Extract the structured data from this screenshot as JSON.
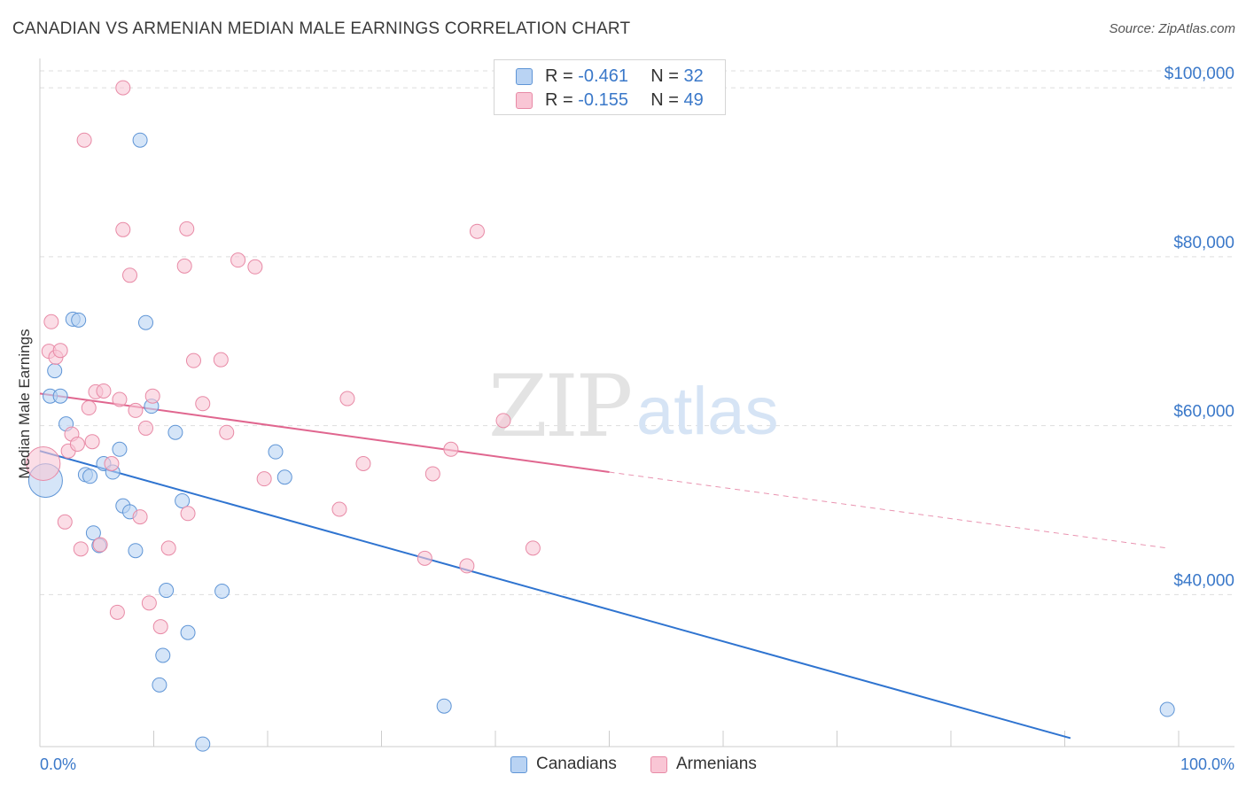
{
  "header": {
    "title": "CANADIAN VS ARMENIAN MEDIAN MALE EARNINGS CORRELATION CHART",
    "source": "Source: ZipAtlas.com"
  },
  "legend": {
    "rows": [
      {
        "r_label": "R =",
        "r_value": "-0.461",
        "n_label": "N =",
        "n_value": "32"
      },
      {
        "r_label": "R =",
        "r_value": "-0.155",
        "n_label": "N =",
        "n_value": "49"
      }
    ]
  },
  "bottom_legend": {
    "canadians": "Canadians",
    "armenians": "Armenians"
  },
  "watermark": {
    "zip": "ZIP",
    "atlas": "atlas"
  },
  "colors": {
    "canadians_fill": "#b9d3f3",
    "canadians_stroke": "#5f95d6",
    "canadians_line": "#2f74d0",
    "armenians_fill": "#f9c6d5",
    "armenians_stroke": "#e88aa6",
    "armenians_line": "#e0668f",
    "tick_text": "#3a78c9",
    "grid": "#dddddd"
  },
  "chart_data": {
    "type": "scatter",
    "title": "CANADIAN VS ARMENIAN MEDIAN MALE EARNINGS CORRELATION CHART",
    "xlabel": "",
    "ylabel": "Median Male Earnings",
    "xlim": [
      0,
      100
    ],
    "ylim": [
      22000,
      102000
    ],
    "x_tick_labels": [
      "0.0%",
      "100.0%"
    ],
    "y_ticks": [
      40000,
      60000,
      80000,
      100000
    ],
    "y_tick_labels": [
      "$40,000",
      "$60,000",
      "$80,000",
      "$100,000"
    ],
    "grid": true,
    "series": [
      {
        "name": "Canadians",
        "r": -0.461,
        "n": 32,
        "trend": {
          "x": [
            0,
            90.5
          ],
          "y": [
            57000,
            23000
          ],
          "dashed_to": null
        },
        "points": [
          {
            "x": 0.5,
            "y": 53500,
            "big": true
          },
          {
            "x": 0.9,
            "y": 63500
          },
          {
            "x": 1.3,
            "y": 66500
          },
          {
            "x": 1.8,
            "y": 63500
          },
          {
            "x": 2.3,
            "y": 60200
          },
          {
            "x": 2.9,
            "y": 72600
          },
          {
            "x": 3.4,
            "y": 72500
          },
          {
            "x": 4.0,
            "y": 54200
          },
          {
            "x": 4.4,
            "y": 54000
          },
          {
            "x": 4.7,
            "y": 47300
          },
          {
            "x": 5.2,
            "y": 45800
          },
          {
            "x": 5.6,
            "y": 55500
          },
          {
            "x": 6.4,
            "y": 54500
          },
          {
            "x": 7.0,
            "y": 57200
          },
          {
            "x": 7.3,
            "y": 50500
          },
          {
            "x": 7.9,
            "y": 49800
          },
          {
            "x": 8.4,
            "y": 45200
          },
          {
            "x": 8.8,
            "y": 93800
          },
          {
            "x": 9.3,
            "y": 72200
          },
          {
            "x": 9.8,
            "y": 62300
          },
          {
            "x": 10.5,
            "y": 29300
          },
          {
            "x": 10.8,
            "y": 32800
          },
          {
            "x": 11.1,
            "y": 40500
          },
          {
            "x": 11.9,
            "y": 59200
          },
          {
            "x": 12.5,
            "y": 51100
          },
          {
            "x": 13.0,
            "y": 35500
          },
          {
            "x": 14.3,
            "y": 22300
          },
          {
            "x": 16.0,
            "y": 40400
          },
          {
            "x": 20.7,
            "y": 56900
          },
          {
            "x": 21.5,
            "y": 53900
          },
          {
            "x": 35.5,
            "y": 26800
          },
          {
            "x": 99.0,
            "y": 26400
          }
        ]
      },
      {
        "name": "Armenians",
        "r": -0.155,
        "n": 49,
        "trend": {
          "x": [
            0,
            50
          ],
          "y": [
            63800,
            54500
          ],
          "dashed_to": {
            "x": 99,
            "y": 45500
          }
        },
        "points": [
          {
            "x": 0.3,
            "y": 55500,
            "big": true
          },
          {
            "x": 0.8,
            "y": 68800
          },
          {
            "x": 1.0,
            "y": 72300
          },
          {
            "x": 1.4,
            "y": 68100
          },
          {
            "x": 1.8,
            "y": 68900
          },
          {
            "x": 2.2,
            "y": 48600
          },
          {
            "x": 2.5,
            "y": 57000
          },
          {
            "x": 2.8,
            "y": 59000
          },
          {
            "x": 3.3,
            "y": 57800
          },
          {
            "x": 3.6,
            "y": 45400
          },
          {
            "x": 4.3,
            "y": 62100
          },
          {
            "x": 4.6,
            "y": 58100
          },
          {
            "x": 4.9,
            "y": 64000
          },
          {
            "x": 5.3,
            "y": 45900
          },
          {
            "x": 5.6,
            "y": 64100
          },
          {
            "x": 6.3,
            "y": 55500
          },
          {
            "x": 6.8,
            "y": 37900
          },
          {
            "x": 7.0,
            "y": 63100
          },
          {
            "x": 7.3,
            "y": 83200
          },
          {
            "x": 7.9,
            "y": 77800
          },
          {
            "x": 8.4,
            "y": 61800
          },
          {
            "x": 8.8,
            "y": 49200
          },
          {
            "x": 9.3,
            "y": 59700
          },
          {
            "x": 9.6,
            "y": 39000
          },
          {
            "x": 9.9,
            "y": 63500
          },
          {
            "x": 10.6,
            "y": 36200
          },
          {
            "x": 11.3,
            "y": 45500
          },
          {
            "x": 12.7,
            "y": 78900
          },
          {
            "x": 12.9,
            "y": 83300
          },
          {
            "x": 13.0,
            "y": 49600
          },
          {
            "x": 13.5,
            "y": 67700
          },
          {
            "x": 14.3,
            "y": 62600
          },
          {
            "x": 15.9,
            "y": 67800
          },
          {
            "x": 16.4,
            "y": 59200
          },
          {
            "x": 17.4,
            "y": 79600
          },
          {
            "x": 18.9,
            "y": 78800
          },
          {
            "x": 19.7,
            "y": 53700
          },
          {
            "x": 26.3,
            "y": 50100
          },
          {
            "x": 27.0,
            "y": 63200
          },
          {
            "x": 28.4,
            "y": 55500
          },
          {
            "x": 33.8,
            "y": 44300
          },
          {
            "x": 34.5,
            "y": 54300
          },
          {
            "x": 36.1,
            "y": 57200
          },
          {
            "x": 37.5,
            "y": 43400
          },
          {
            "x": 38.4,
            "y": 83000
          },
          {
            "x": 40.7,
            "y": 60600
          },
          {
            "x": 43.3,
            "y": 45500
          },
          {
            "x": 7.3,
            "y": 100000
          },
          {
            "x": 3.9,
            "y": 93800
          }
        ]
      }
    ]
  }
}
